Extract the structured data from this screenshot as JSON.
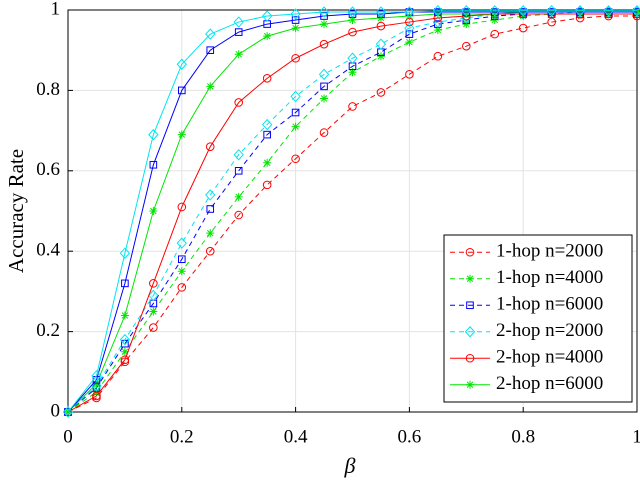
{
  "chart_data": {
    "type": "line",
    "x_label": "β",
    "y_label": "Accuracy Rate",
    "x": [
      0,
      0.05,
      0.1,
      0.15,
      0.2,
      0.25,
      0.3,
      0.35,
      0.4,
      0.45,
      0.5,
      0.55,
      0.6,
      0.65,
      0.7,
      0.75,
      0.8,
      0.85,
      0.9,
      0.95,
      1
    ],
    "xlim": [
      0,
      1
    ],
    "xticks": [
      0,
      0.2,
      0.4,
      0.6,
      0.8,
      1
    ],
    "ylim": [
      0,
      1
    ],
    "yticks": [
      0,
      0.2,
      0.4,
      0.6,
      0.8,
      1
    ],
    "grid": true,
    "legend_position": "southeast",
    "series": [
      {
        "name": "1-hop n=2000",
        "color": "#ff0000",
        "marker": "circle",
        "dashed": true,
        "values": [
          0,
          0.035,
          0.125,
          0.21,
          0.31,
          0.4,
          0.49,
          0.565,
          0.63,
          0.695,
          0.76,
          0.795,
          0.84,
          0.885,
          0.91,
          0.94,
          0.955,
          0.97,
          0.98,
          0.985,
          0.985
        ]
      },
      {
        "name": "1-hop n=4000",
        "color": "#00e600",
        "marker": "star",
        "dashed": true,
        "values": [
          0,
          0.05,
          0.15,
          0.25,
          0.35,
          0.445,
          0.535,
          0.62,
          0.71,
          0.78,
          0.845,
          0.885,
          0.92,
          0.95,
          0.965,
          0.975,
          0.985,
          0.99,
          0.99,
          0.99,
          0.99
        ]
      },
      {
        "name": "1-hop n=6000",
        "color": "#0000ff",
        "marker": "square",
        "dashed": true,
        "values": [
          0,
          0.06,
          0.17,
          0.27,
          0.38,
          0.505,
          0.6,
          0.69,
          0.745,
          0.81,
          0.86,
          0.895,
          0.94,
          0.965,
          0.975,
          0.985,
          0.99,
          0.99,
          0.99,
          0.99,
          0.99
        ]
      },
      {
        "name": "2-hop n=2000",
        "color": "#00e5ee",
        "marker": "diamond",
        "dashed": true,
        "values": [
          0,
          0.065,
          0.18,
          0.29,
          0.42,
          0.54,
          0.64,
          0.715,
          0.785,
          0.84,
          0.88,
          0.915,
          0.955,
          0.97,
          0.98,
          0.99,
          0.99,
          0.99,
          0.995,
          0.995,
          0.995
        ]
      },
      {
        "name": "2-hop n=4000",
        "color": "#ff0000",
        "marker": "circle",
        "dashed": false,
        "values": [
          0,
          0.04,
          0.13,
          0.32,
          0.51,
          0.66,
          0.77,
          0.83,
          0.88,
          0.915,
          0.945,
          0.96,
          0.97,
          0.98,
          0.985,
          0.99,
          0.99,
          0.99,
          0.99,
          0.99,
          0.99
        ]
      },
      {
        "name": "2-hop n=6000",
        "color": "#00e600",
        "marker": "star",
        "dashed": false,
        "values": [
          0,
          0.07,
          0.24,
          0.5,
          0.69,
          0.81,
          0.89,
          0.935,
          0.955,
          0.965,
          0.975,
          0.98,
          0.985,
          0.99,
          0.99,
          0.99,
          0.995,
          0.995,
          0.995,
          0.995,
          0.995
        ]
      },
      {
        "color": "#0000ff",
        "marker": "square",
        "dashed": false,
        "values": [
          0,
          0.08,
          0.32,
          0.615,
          0.8,
          0.9,
          0.945,
          0.965,
          0.975,
          0.985,
          0.99,
          0.99,
          0.995,
          0.995,
          0.995,
          0.995,
          0.995,
          0.995,
          0.995,
          0.995,
          0.995
        ]
      },
      {
        "color": "#00e5ee",
        "marker": "diamond",
        "dashed": false,
        "values": [
          0,
          0.09,
          0.395,
          0.69,
          0.865,
          0.94,
          0.97,
          0.985,
          0.99,
          0.995,
          0.995,
          0.995,
          0.995,
          0.998,
          0.998,
          0.998,
          0.998,
          0.998,
          0.998,
          0.998,
          0.998
        ]
      }
    ]
  }
}
